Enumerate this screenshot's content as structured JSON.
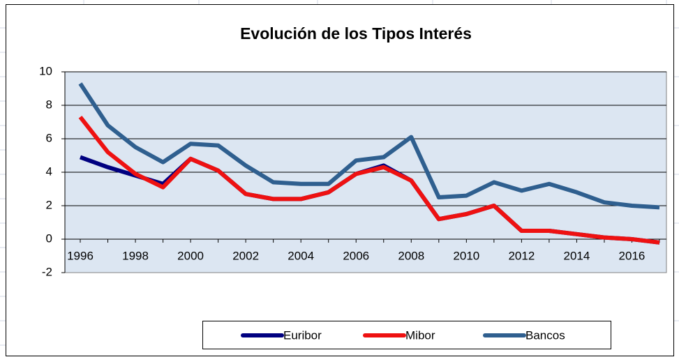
{
  "chart_data": {
    "type": "line",
    "title": "Evolución de los Tipos Interés",
    "categories": [
      "1996",
      null,
      "1998",
      null,
      "2000",
      null,
      "2002",
      null,
      "2004",
      null,
      "2006",
      null,
      "2008",
      null,
      "2010",
      null,
      "2012",
      null,
      "2014",
      null,
      "2016",
      null
    ],
    "series": [
      {
        "name": "Euribor",
        "color": "#000080",
        "values": [
          4.9,
          4.3,
          3.8,
          3.3,
          4.8,
          4.1,
          2.7,
          2.4,
          2.4,
          2.8,
          3.9,
          4.4,
          3.5,
          1.2,
          1.5,
          2.0,
          0.5,
          0.5,
          0.3,
          0.1,
          0.0,
          -0.2
        ]
      },
      {
        "name": "Mibor",
        "color": "#ee1111",
        "values": [
          7.3,
          5.2,
          3.9,
          3.1,
          4.8,
          4.1,
          2.7,
          2.4,
          2.4,
          2.8,
          3.9,
          4.3,
          3.5,
          1.2,
          1.5,
          2.0,
          0.5,
          0.5,
          0.3,
          0.1,
          0.0,
          -0.2
        ]
      },
      {
        "name": "Bancos",
        "color": "#2f5f8f",
        "values": [
          9.3,
          6.8,
          5.5,
          4.6,
          5.7,
          5.6,
          4.4,
          3.4,
          3.3,
          3.3,
          4.7,
          4.9,
          6.1,
          2.5,
          2.6,
          3.4,
          2.9,
          3.3,
          2.8,
          2.2,
          2.0,
          1.9
        ]
      }
    ],
    "ylim": [
      -2,
      10
    ],
    "yticks": [
      -2,
      0,
      2,
      4,
      6,
      8,
      10
    ],
    "grid": true
  }
}
